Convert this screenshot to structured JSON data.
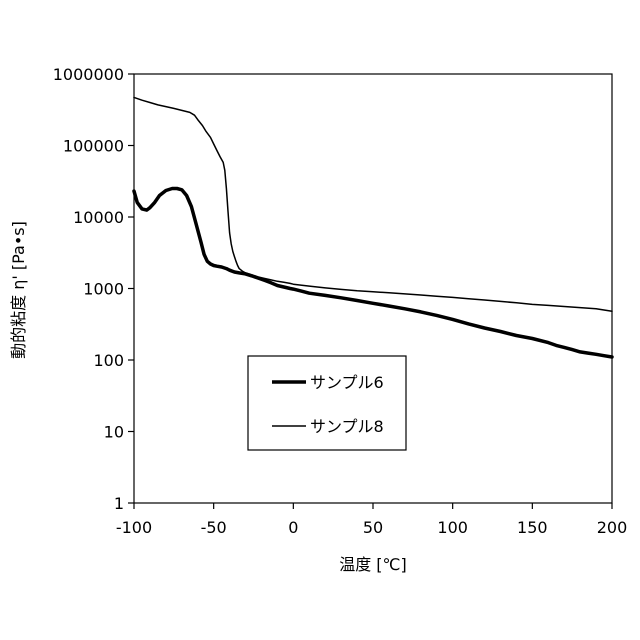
{
  "chart_data": {
    "type": "line",
    "title": "",
    "xlabel": "温度 [℃]",
    "ylabel": "動的粘度 η' [Pa•s]",
    "xlim": [
      -100,
      200
    ],
    "ylim": [
      1,
      1000000
    ],
    "yscale": "log",
    "grid": false,
    "legend_position": "center-left",
    "x_ticks": [
      "-100",
      "-50",
      "0",
      "50",
      "100",
      "150",
      "200"
    ],
    "y_ticks": [
      "1",
      "10",
      "100",
      "1000",
      "10000",
      "100000",
      "1000000"
    ],
    "series": [
      {
        "name": "サンプル6",
        "color": "#000000",
        "line_weight": "thick",
        "x": [
          -100,
          -98,
          -95,
          -92,
          -90,
          -87,
          -84,
          -80,
          -76,
          -73,
          -70,
          -67,
          -64,
          -61,
          -58,
          -56,
          -54,
          -52,
          -50,
          -48,
          -45,
          -42,
          -40,
          -37,
          -34,
          -30,
          -26,
          -22,
          -18,
          -14,
          -10,
          -6,
          -2,
          0,
          5,
          10,
          20,
          30,
          40,
          50,
          60,
          70,
          80,
          90,
          100,
          110,
          120,
          130,
          140,
          150,
          160,
          165,
          170,
          175,
          180,
          185,
          190,
          195,
          200
        ],
        "y": [
          23000,
          16000,
          13000,
          12500,
          13500,
          16000,
          20000,
          23500,
          25000,
          25000,
          24000,
          20000,
          14000,
          8000,
          4500,
          3000,
          2400,
          2200,
          2100,
          2050,
          2000,
          1900,
          1800,
          1700,
          1650,
          1600,
          1500,
          1400,
          1300,
          1200,
          1100,
          1050,
          1000,
          980,
          920,
          860,
          800,
          740,
          680,
          620,
          570,
          520,
          470,
          420,
          370,
          320,
          280,
          250,
          220,
          200,
          175,
          160,
          150,
          140,
          130,
          125,
          120,
          115,
          110
        ]
      },
      {
        "name": "サンプル8",
        "color": "#000000",
        "line_weight": "thin",
        "x": [
          -100,
          -95,
          -90,
          -85,
          -80,
          -75,
          -70,
          -65,
          -62,
          -60,
          -57,
          -55,
          -52,
          -50,
          -48,
          -46,
          -44,
          -43,
          -42,
          -41,
          -40,
          -39,
          -38,
          -37,
          -36,
          -35,
          -34,
          -32,
          -30,
          -26,
          -22,
          -18,
          -14,
          -10,
          -6,
          -2,
          0,
          10,
          20,
          30,
          40,
          50,
          60,
          70,
          80,
          90,
          100,
          110,
          120,
          130,
          140,
          150,
          160,
          170,
          180,
          190,
          195,
          200
        ],
        "y": [
          470000,
          430000,
          400000,
          370000,
          350000,
          330000,
          310000,
          290000,
          265000,
          230000,
          190000,
          160000,
          130000,
          105000,
          85000,
          70000,
          58000,
          45000,
          25000,
          12000,
          6000,
          4200,
          3300,
          2800,
          2400,
          2100,
          1900,
          1750,
          1650,
          1550,
          1450,
          1380,
          1320,
          1260,
          1220,
          1180,
          1150,
          1080,
          1020,
          970,
          930,
          900,
          870,
          840,
          810,
          780,
          750,
          720,
          690,
          660,
          630,
          600,
          580,
          560,
          540,
          520,
          500,
          480
        ]
      }
    ]
  }
}
